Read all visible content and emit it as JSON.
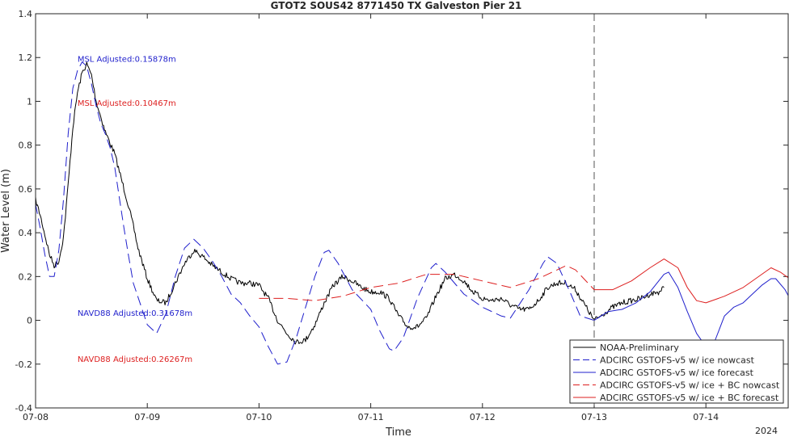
{
  "chart_data": {
    "type": "line",
    "title": "GTOT2 SOUS42 8771450 TX Galveston Pier 21",
    "xlabel": "Time",
    "ylabel": "Water Level (m)",
    "year_label": "2024",
    "xlim": [
      "07-08",
      "07-14 18:00"
    ],
    "ylim": [
      -0.4,
      1.4
    ],
    "x_ticks": [
      "07-08",
      "07-09",
      "07-10",
      "07-11",
      "07-12",
      "07-13",
      "07-14"
    ],
    "y_ticks": [
      "-0.4",
      "-0.2",
      "0",
      "0.2",
      "0.4",
      "0.6",
      "0.8",
      "1",
      "1.2",
      "1.4"
    ],
    "grid": false,
    "legend_position": "bottom-right",
    "nowcast_boundary": "07-13",
    "annotations": [
      {
        "text": "MSL Adjusted:0.15878m",
        "color": "#1f1fcc",
        "at": [
          "07-08 09:00",
          1.18
        ]
      },
      {
        "text": "MSL Adjusted:0.10467m",
        "color": "#dd1f1f",
        "at": [
          "07-08 09:00",
          0.98
        ]
      },
      {
        "text": "NAVD88 Adjusted:0.31678m",
        "color": "#1f1fcc",
        "at": [
          "07-08 09:00",
          0.02
        ]
      },
      {
        "text": "NAVD88 Adjusted:0.26267m",
        "color": "#dd1f1f",
        "at": [
          "07-08 09:00",
          -0.19
        ]
      }
    ],
    "series": [
      {
        "name": "NOAA-Preliminary",
        "color": "#000000",
        "style": "solid",
        "points": [
          [
            "07-08 00:00",
            0.55
          ],
          [
            "07-08 01:00",
            0.48
          ],
          [
            "07-08 02:00",
            0.39
          ],
          [
            "07-08 03:00",
            0.3
          ],
          [
            "07-08 04:00",
            0.25
          ],
          [
            "07-08 05:00",
            0.27
          ],
          [
            "07-08 06:00",
            0.38
          ],
          [
            "07-08 07:00",
            0.62
          ],
          [
            "07-08 08:00",
            0.88
          ],
          [
            "07-08 09:00",
            1.04
          ],
          [
            "07-08 10:00",
            1.13
          ],
          [
            "07-08 11:00",
            1.17
          ],
          [
            "07-08 12:00",
            1.12
          ],
          [
            "07-08 13:00",
            1.0
          ],
          [
            "07-08 14:00",
            0.93
          ],
          [
            "07-08 15:00",
            0.86
          ],
          [
            "07-08 16:00",
            0.81
          ],
          [
            "07-08 17:00",
            0.76
          ],
          [
            "07-08 18:00",
            0.68
          ],
          [
            "07-08 19:00",
            0.6
          ],
          [
            "07-08 20:00",
            0.52
          ],
          [
            "07-08 21:00",
            0.43
          ],
          [
            "07-08 22:00",
            0.33
          ],
          [
            "07-09 00:00",
            0.19
          ],
          [
            "07-09 02:00",
            0.09
          ],
          [
            "07-09 04:00",
            0.08
          ],
          [
            "07-09 06:00",
            0.17
          ],
          [
            "07-09 08:00",
            0.26
          ],
          [
            "07-09 10:00",
            0.32
          ],
          [
            "07-09 12:00",
            0.29
          ],
          [
            "07-09 14:00",
            0.25
          ],
          [
            "07-09 16:00",
            0.22
          ],
          [
            "07-09 18:00",
            0.19
          ],
          [
            "07-09 20:00",
            0.17
          ],
          [
            "07-09 22:00",
            0.17
          ],
          [
            "07-10 00:00",
            0.16
          ],
          [
            "07-10 02:00",
            0.1
          ],
          [
            "07-10 04:00",
            0.0
          ],
          [
            "07-10 06:00",
            -0.06
          ],
          [
            "07-10 08:00",
            -0.1
          ],
          [
            "07-10 10:00",
            -0.09
          ],
          [
            "07-10 12:00",
            -0.02
          ],
          [
            "07-10 14:00",
            0.08
          ],
          [
            "07-10 16:00",
            0.16
          ],
          [
            "07-10 18:00",
            0.2
          ],
          [
            "07-10 20:00",
            0.18
          ],
          [
            "07-10 22:00",
            0.15
          ],
          [
            "07-11 00:00",
            0.13
          ],
          [
            "07-11 02:00",
            0.13
          ],
          [
            "07-11 04:00",
            0.1
          ],
          [
            "07-11 06:00",
            0.02
          ],
          [
            "07-11 08:00",
            -0.03
          ],
          [
            "07-11 10:00",
            -0.03
          ],
          [
            "07-11 12:00",
            0.01
          ],
          [
            "07-11 14:00",
            0.11
          ],
          [
            "07-11 16:00",
            0.19
          ],
          [
            "07-11 18:00",
            0.21
          ],
          [
            "07-11 20:00",
            0.18
          ],
          [
            "07-11 22:00",
            0.13
          ],
          [
            "07-12 00:00",
            0.1
          ],
          [
            "07-12 02:00",
            0.09
          ],
          [
            "07-12 04:00",
            0.1
          ],
          [
            "07-12 06:00",
            0.07
          ],
          [
            "07-12 08:00",
            0.05
          ],
          [
            "07-12 10:00",
            0.05
          ],
          [
            "07-12 12:00",
            0.09
          ],
          [
            "07-12 14:00",
            0.15
          ],
          [
            "07-12 16:00",
            0.17
          ],
          [
            "07-12 18:00",
            0.17
          ],
          [
            "07-12 20:00",
            0.14
          ],
          [
            "07-12 22:00",
            0.07
          ],
          [
            "07-13 00:00",
            0.0
          ],
          [
            "07-13 02:00",
            0.03
          ],
          [
            "07-13 04:00",
            0.06
          ],
          [
            "07-13 06:00",
            0.08
          ],
          [
            "07-13 08:00",
            0.09
          ],
          [
            "07-13 10:00",
            0.1
          ],
          [
            "07-13 12:00",
            0.12
          ],
          [
            "07-13 14:00",
            0.13
          ],
          [
            "07-13 15:00",
            0.15
          ]
        ]
      },
      {
        "name": "ADCIRC GSTOFS-v5 w/ ice nowcast",
        "color": "#1f1fcc",
        "style": "dashed",
        "points": [
          [
            "07-08 00:00",
            0.53
          ],
          [
            "07-08 01:00",
            0.42
          ],
          [
            "07-08 02:00",
            0.3
          ],
          [
            "07-08 03:00",
            0.2
          ],
          [
            "07-08 04:00",
            0.2
          ],
          [
            "07-08 05:00",
            0.32
          ],
          [
            "07-08 06:00",
            0.55
          ],
          [
            "07-08 07:00",
            0.85
          ],
          [
            "07-08 08:00",
            1.06
          ],
          [
            "07-08 09:00",
            1.14
          ],
          [
            "07-08 10:00",
            1.18
          ],
          [
            "07-08 11:00",
            1.16
          ],
          [
            "07-08 12:00",
            1.08
          ],
          [
            "07-08 13:00",
            0.98
          ],
          [
            "07-08 14:00",
            0.9
          ],
          [
            "07-08 15:00",
            0.85
          ],
          [
            "07-08 16:00",
            0.79
          ],
          [
            "07-08 17:00",
            0.7
          ],
          [
            "07-08 18:00",
            0.56
          ],
          [
            "07-08 19:00",
            0.42
          ],
          [
            "07-08 20:00",
            0.29
          ],
          [
            "07-08 21:00",
            0.17
          ],
          [
            "07-09 00:00",
            -0.02
          ],
          [
            "07-09 02:00",
            -0.06
          ],
          [
            "07-09 04:00",
            0.03
          ],
          [
            "07-09 06:00",
            0.2
          ],
          [
            "07-09 08:00",
            0.33
          ],
          [
            "07-09 10:00",
            0.37
          ],
          [
            "07-09 12:00",
            0.33
          ],
          [
            "07-09 14:00",
            0.27
          ],
          [
            "07-09 16:00",
            0.2
          ],
          [
            "07-09 18:00",
            0.12
          ],
          [
            "07-09 20:00",
            0.08
          ],
          [
            "07-09 22:00",
            0.02
          ],
          [
            "07-10 00:00",
            -0.03
          ],
          [
            "07-10 02:00",
            -0.12
          ],
          [
            "07-10 04:00",
            -0.2
          ],
          [
            "07-10 06:00",
            -0.19
          ],
          [
            "07-10 08:00",
            -0.08
          ],
          [
            "07-10 10:00",
            0.06
          ],
          [
            "07-10 12:00",
            0.2
          ],
          [
            "07-10 14:00",
            0.31
          ],
          [
            "07-10 15:00",
            0.32
          ],
          [
            "07-10 17:00",
            0.26
          ],
          [
            "07-10 20:00",
            0.14
          ],
          [
            "07-11 00:00",
            0.05
          ],
          [
            "07-11 02:00",
            -0.05
          ],
          [
            "07-11 04:00",
            -0.13
          ],
          [
            "07-11 05:00",
            -0.14
          ],
          [
            "07-11 07:00",
            -0.08
          ],
          [
            "07-11 10:00",
            0.1
          ],
          [
            "07-11 13:00",
            0.24
          ],
          [
            "07-11 14:00",
            0.26
          ],
          [
            "07-11 16:00",
            0.22
          ],
          [
            "07-11 20:00",
            0.12
          ],
          [
            "07-12 00:00",
            0.06
          ],
          [
            "07-12 04:00",
            0.02
          ],
          [
            "07-12 06:00",
            0.01
          ],
          [
            "07-12 10:00",
            0.14
          ],
          [
            "07-12 13:00",
            0.26
          ],
          [
            "07-12 14:00",
            0.29
          ],
          [
            "07-12 16:00",
            0.26
          ],
          [
            "07-12 19:00",
            0.12
          ],
          [
            "07-12 21:00",
            0.02
          ],
          [
            "07-13 00:00",
            0.0
          ]
        ]
      },
      {
        "name": "ADCIRC GSTOFS-v5 w/ ice forecast",
        "color": "#1f1fcc",
        "style": "solid",
        "points": [
          [
            "07-13 00:00",
            0.0
          ],
          [
            "07-13 03:00",
            0.04
          ],
          [
            "07-13 06:00",
            0.05
          ],
          [
            "07-13 09:00",
            0.08
          ],
          [
            "07-13 12:00",
            0.13
          ],
          [
            "07-13 15:00",
            0.21
          ],
          [
            "07-13 16:00",
            0.22
          ],
          [
            "07-13 18:00",
            0.15
          ],
          [
            "07-13 20:00",
            0.04
          ],
          [
            "07-13 22:00",
            -0.06
          ],
          [
            "07-14 00:00",
            -0.12
          ],
          [
            "07-14 02:00",
            -0.09
          ],
          [
            "07-14 04:00",
            0.02
          ],
          [
            "07-14 06:00",
            0.06
          ],
          [
            "07-14 08:00",
            0.08
          ],
          [
            "07-14 10:00",
            0.12
          ],
          [
            "07-14 12:00",
            0.16
          ],
          [
            "07-14 14:00",
            0.19
          ],
          [
            "07-14 15:00",
            0.19
          ],
          [
            "07-14 17:00",
            0.14
          ],
          [
            "07-14 18:00",
            0.1
          ]
        ]
      },
      {
        "name": "ADCIRC GSTOFS-v5 w/ ice + BC nowcast",
        "color": "#dd1f1f",
        "style": "dashed",
        "points": [
          [
            "07-10 00:00",
            0.1
          ],
          [
            "07-10 06:00",
            0.1
          ],
          [
            "07-10 12:00",
            0.09
          ],
          [
            "07-10 18:00",
            0.11
          ],
          [
            "07-11 00:00",
            0.15
          ],
          [
            "07-11 06:00",
            0.17
          ],
          [
            "07-11 12:00",
            0.21
          ],
          [
            "07-11 18:00",
            0.21
          ],
          [
            "07-12 00:00",
            0.18
          ],
          [
            "07-12 06:00",
            0.15
          ],
          [
            "07-12 12:00",
            0.19
          ],
          [
            "07-12 18:00",
            0.25
          ],
          [
            "07-12 20:00",
            0.23
          ],
          [
            "07-13 00:00",
            0.14
          ]
        ]
      },
      {
        "name": "ADCIRC GSTOFS-v5 w/ ice + BC forecast",
        "color": "#dd1f1f",
        "style": "solid",
        "points": [
          [
            "07-13 00:00",
            0.14
          ],
          [
            "07-13 04:00",
            0.14
          ],
          [
            "07-13 08:00",
            0.18
          ],
          [
            "07-13 12:00",
            0.24
          ],
          [
            "07-13 15:00",
            0.28
          ],
          [
            "07-13 18:00",
            0.24
          ],
          [
            "07-13 20:00",
            0.15
          ],
          [
            "07-13 22:00",
            0.09
          ],
          [
            "07-14 00:00",
            0.08
          ],
          [
            "07-14 04:00",
            0.11
          ],
          [
            "07-14 08:00",
            0.15
          ],
          [
            "07-14 12:00",
            0.21
          ],
          [
            "07-14 14:00",
            0.24
          ],
          [
            "07-14 16:00",
            0.22
          ],
          [
            "07-14 18:00",
            0.19
          ]
        ]
      }
    ]
  }
}
